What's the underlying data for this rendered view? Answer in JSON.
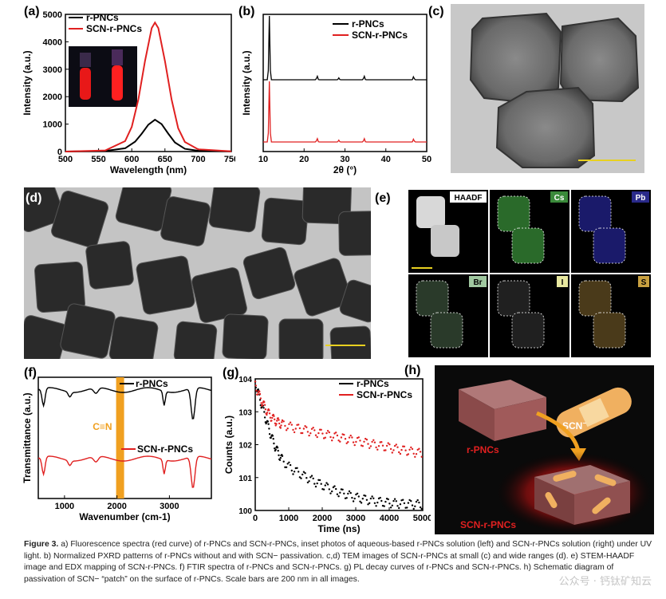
{
  "panels": {
    "a": {
      "tag": "(a)"
    },
    "b": {
      "tag": "(b)"
    },
    "c": {
      "tag": "(c)"
    },
    "d": {
      "tag": "(d)"
    },
    "e": {
      "tag": "(e)",
      "labels": [
        "HAADF",
        "Cs",
        "Pb",
        "Br",
        "I",
        "S"
      ]
    },
    "f": {
      "tag": "(f)",
      "band_label": "C≡N"
    },
    "g": {
      "tag": "(g)"
    },
    "h": {
      "tag": "(h)",
      "label_bare": "r-PNCs",
      "label_scn": "SCN",
      "label_scn_sup": "−",
      "label_passivated": "SCN-r-PNCs"
    }
  },
  "colors": {
    "black_series": "#000000",
    "red_series": "#e02020",
    "band": "#f0a020",
    "tem_bg": "#c8c8c8",
    "scale_bar": "#e8d020"
  },
  "chart_data": [
    {
      "id": "a",
      "type": "line",
      "xlabel": "Wavelength (nm)",
      "ylabel": "Intensity (a.u.)",
      "xlim": [
        500,
        750
      ],
      "ylim": [
        0,
        5000
      ],
      "xticks": [
        "500",
        "550",
        "600",
        "650",
        "700",
        "750"
      ],
      "yticks": [
        "0",
        "1000",
        "2000",
        "3000",
        "4000",
        "5000"
      ],
      "legend": "top-left",
      "series": [
        {
          "name": "r-PNCs",
          "color": "#000000",
          "x": [
            500,
            560,
            590,
            605,
            615,
            625,
            635,
            645,
            655,
            665,
            680,
            700,
            750
          ],
          "y": [
            0,
            20,
            120,
            360,
            650,
            980,
            1160,
            1000,
            650,
            330,
            100,
            30,
            5
          ]
        },
        {
          "name": "SCN-r-PNCs",
          "color": "#e02020",
          "x": [
            500,
            560,
            590,
            600,
            610,
            620,
            630,
            635,
            640,
            650,
            660,
            670,
            680,
            700,
            750
          ],
          "y": [
            0,
            40,
            380,
            900,
            1900,
            3300,
            4500,
            4700,
            4500,
            3300,
            1900,
            850,
            350,
            80,
            10
          ]
        }
      ]
    },
    {
      "id": "b",
      "type": "line",
      "xlabel": "2θ (°)",
      "ylabel": "Intensity (a.u.)",
      "xlim": [
        10,
        50
      ],
      "xticks": [
        "10",
        "20",
        "30",
        "40",
        "50"
      ],
      "legend": "top-right",
      "series": [
        {
          "name": "r-PNCs",
          "color": "#000000",
          "peaks": [
            11.5,
            23.2,
            28.5,
            34.7,
            46.8
          ],
          "heights": [
            1.0,
            0.06,
            0.03,
            0.06,
            0.05
          ]
        },
        {
          "name": "SCN-r-PNCs",
          "color": "#e02020",
          "peaks": [
            11.5,
            23.2,
            28.5,
            34.7,
            46.8
          ],
          "heights": [
            1.0,
            0.06,
            0.03,
            0.06,
            0.05
          ]
        }
      ]
    },
    {
      "id": "f",
      "type": "line",
      "xlabel": "Wavenumber (cm-1)",
      "ylabel": "Transmittance (a.u.)",
      "xlim": [
        500,
        3800
      ],
      "xticks": [
        "1000",
        "2000",
        "3000"
      ],
      "legend": "inline",
      "series": [
        {
          "name": "r-PNCs",
          "color": "#000000"
        },
        {
          "name": "SCN-r-PNCs",
          "color": "#e02020"
        }
      ],
      "band_center": 2060
    },
    {
      "id": "g",
      "type": "scatter",
      "xlabel": "Time (ns)",
      "ylabel": "Counts (a.u.)",
      "xlim": [
        0,
        5000
      ],
      "ylim": [
        1,
        10000
      ],
      "yscale": "log",
      "xticks": [
        "0",
        "1000",
        "2000",
        "3000",
        "4000",
        "5000"
      ],
      "yticks": [
        "100",
        "101",
        "102",
        "103",
        "104"
      ],
      "legend": "top-right",
      "series": [
        {
          "name": "r-PNCs",
          "color": "#000000"
        },
        {
          "name": "SCN-r-PNCs",
          "color": "#e02020"
        }
      ]
    }
  ],
  "caption": {
    "label": "Figure 3.",
    "text": "a) Fluorescence spectra (red curve) of r-PNCs and SCN-r-PNCs, inset photos of aqueous-based r-PNCs solution (left) and SCN-r-PNCs solution (right) under UV light. b) Normalized PXRD patterns of r-PNCs without and with SCN− passivation. c,d) TEM images of SCN-r-PNCs at small (c) and wide ranges (d). e) STEM-HAADF image and EDX mapping of SCN-r-PNCs. f) FTIR spectra of r-PNCs and SCN-r-PNCs. g) PL decay curves of r-PNCs and SCN-r-PNCs. h) Schematic diagram of passivation of SCN− “patch” on the surface of r-PNCs. Scale bars are 200 nm in all images."
  },
  "watermark": "公众号 · 钙钛矿知云"
}
